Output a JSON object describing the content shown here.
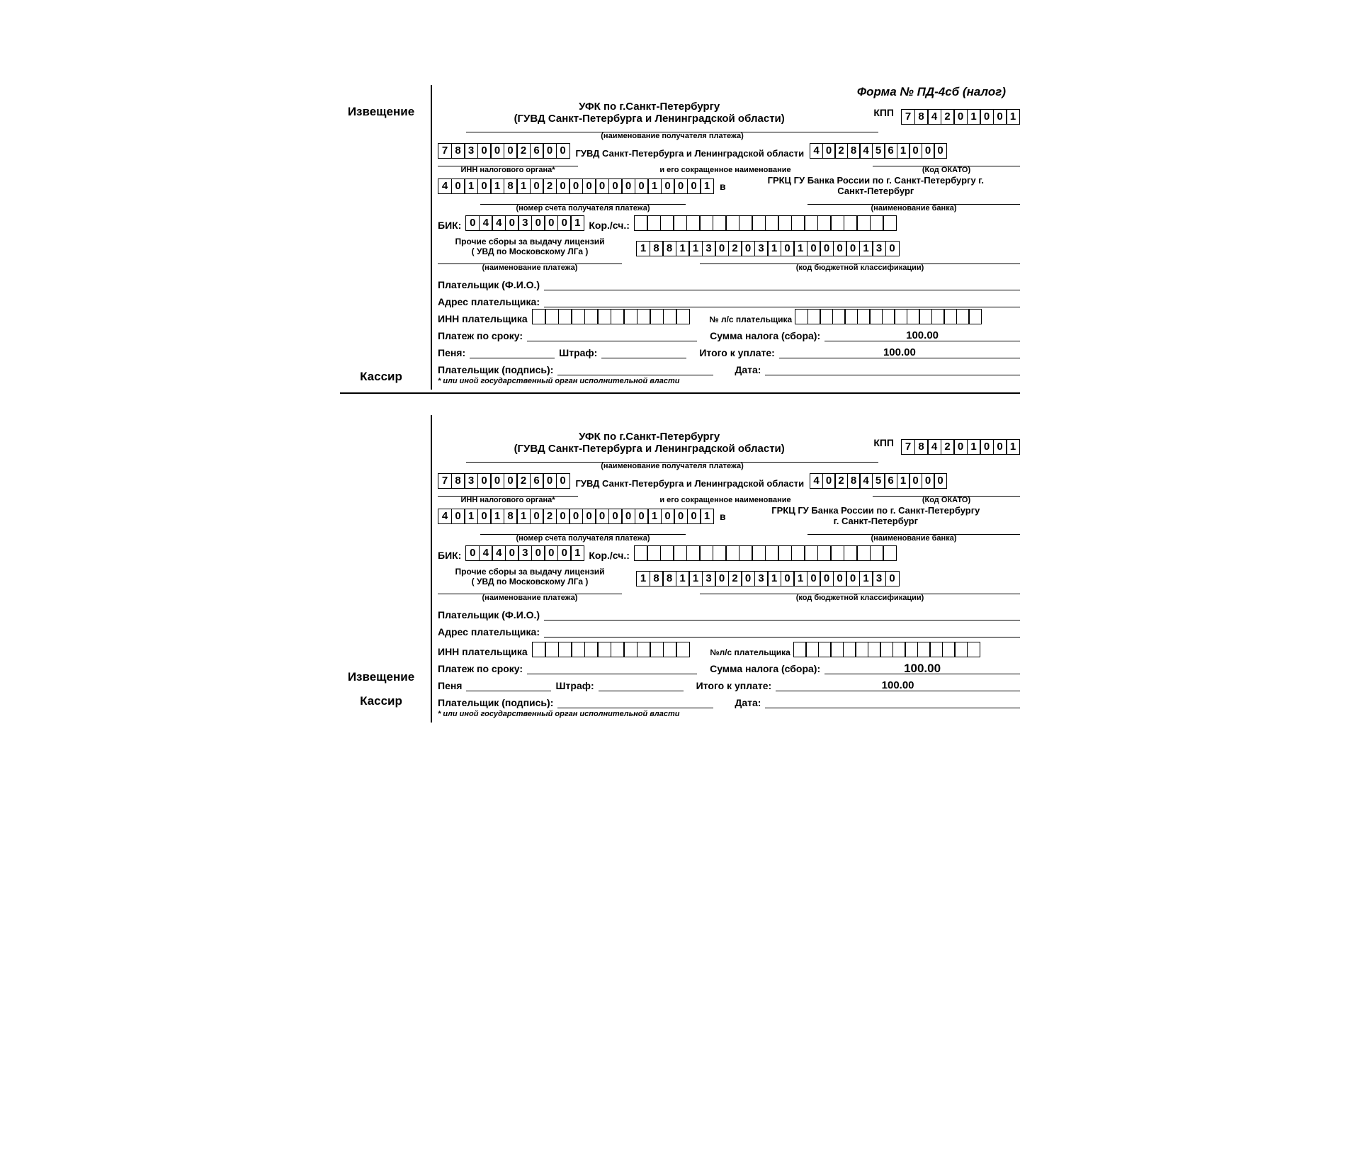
{
  "formTitle": "Форма № ПД-4сб (налог)",
  "labels": {
    "izveshenie": "Извещение",
    "kassir": "Кассир",
    "kpp": "КПП",
    "recipientCaption": "(наименование получателя платежа)",
    "innOrgan": "ИНН налогового органа*",
    "shortName": "и его сокращенное наименование",
    "okato": "(Код ОКАТО)",
    "accountCaption": "(номер счета получателя платежа)",
    "v": "в",
    "bankCaption": "(наименование банка)",
    "bik": "БИК:",
    "korsch": "Кор./сч.:",
    "paymentNameCaption": "(наименование платежа)",
    "kbkCaption": "(код бюджетной классификации)",
    "payerFio": "Плательщик (Ф.И.О.)",
    "payerAddr": "Адрес плательщика:",
    "payerInn": "ИНН плательщика",
    "lsAccount": "№ л/с плательщика",
    "lsAccount2": "№л/с плательщика",
    "dueDate": "Платеж по сроку:",
    "taxSum": "Сумма налога (сбора):",
    "penya": "Пеня:",
    "penya2": "Пеня",
    "shtraf": "Штраф:",
    "total": "Итого к уплате:",
    "payerSign": "Плательщик (подпись):",
    "date": "Дата:",
    "footnote": "* или иной государственный орган исполнительной власти"
  },
  "recipient": {
    "line1": "УФК по г.Санкт-Петербургу",
    "line2": "(ГУВД Санкт-Петербурга и Ленинградской области)"
  },
  "kpp": [
    "7",
    "8",
    "4",
    "2",
    "0",
    "1",
    "0",
    "0",
    "1"
  ],
  "innDigits": [
    "7",
    "8",
    "3",
    "0",
    "0",
    "0",
    "2",
    "6",
    "0",
    "0"
  ],
  "orgShort": "ГУВД Санкт-Петербурга и Ленинградской области",
  "okato": [
    "4",
    "0",
    "2",
    "8",
    "4",
    "5",
    "6",
    "1",
    "0",
    "0",
    "0"
  ],
  "account": [
    "4",
    "0",
    "1",
    "0",
    "1",
    "8",
    "1",
    "0",
    "2",
    "0",
    "0",
    "0",
    "0",
    "0",
    "0",
    "0",
    "1",
    "0",
    "0",
    "0",
    "1"
  ],
  "bankName1": "ГРКЦ ГУ Банка России по г. Санкт-Петербургу г.",
  "bankName1b": "Санкт-Петербург",
  "bankName2a": "ГРКЦ ГУ Банка России по г. Санкт-Петербургу",
  "bankName2b": "г. Санкт-Петербург",
  "bik": [
    "0",
    "4",
    "4",
    "0",
    "3",
    "0",
    "0",
    "0",
    "1"
  ],
  "korsch": [
    "",
    "",
    "",
    "",
    "",
    "",
    "",
    "",
    "",
    "",
    "",
    "",
    "",
    "",
    "",
    "",
    "",
    "",
    "",
    ""
  ],
  "paymentName1": "Прочие сборы за выдачу лицензий",
  "paymentName2": "(  УВД по Московскому ЛГа )",
  "kbk": [
    "1",
    "8",
    "8",
    "1",
    "1",
    "3",
    "0",
    "2",
    "0",
    "3",
    "1",
    "0",
    "1",
    "0",
    "0",
    "0",
    "0",
    "1",
    "3",
    "0"
  ],
  "payerInnCells": [
    "",
    "",
    "",
    "",
    "",
    "",
    "",
    "",
    "",
    "",
    "",
    ""
  ],
  "lsCells": [
    "",
    "",
    "",
    "",
    "",
    "",
    "",
    "",
    "",
    "",
    "",
    "",
    "",
    "",
    ""
  ],
  "amount": "100.00",
  "total": "100.00"
}
